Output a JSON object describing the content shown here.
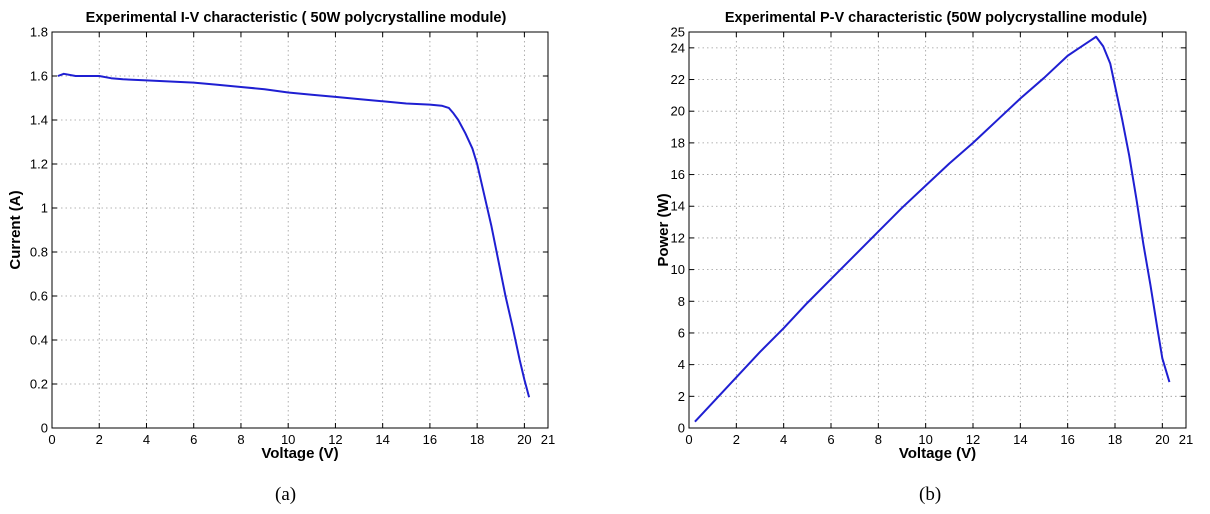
{
  "figure": {
    "captions": [
      "(a)",
      "(b)"
    ]
  },
  "chart_data": [
    {
      "type": "line",
      "title": "Experimental I-V characteristic ( 50W polycrystalline module)",
      "xlabel": "Voltage (V)",
      "ylabel": "Current (A)",
      "xlim": [
        0,
        21
      ],
      "ylim": [
        0,
        1.8
      ],
      "xticks": [
        0,
        2,
        4,
        6,
        8,
        10,
        12,
        14,
        16,
        18,
        20,
        21
      ],
      "yticks": [
        0,
        0.2,
        0.4,
        0.6,
        0.8,
        1,
        1.2,
        1.4,
        1.6,
        1.8
      ],
      "xtick_labels": [
        "0",
        "2",
        "4",
        "6",
        "8",
        "10",
        "12",
        "14",
        "16",
        "18",
        "20",
        "21"
      ],
      "ytick_labels": [
        "0",
        "0.2",
        "0.4",
        "0.6",
        "0.8",
        "1",
        "1.2",
        "1.4",
        "1.6",
        "1.8"
      ],
      "grid": true,
      "color": "#1f1fd2",
      "series": [
        {
          "x": [
            0.25,
            0.5,
            1.0,
            1.5,
            2.0,
            2.5,
            3.0,
            4.0,
            5.0,
            6.0,
            7.0,
            8.0,
            9.0,
            10.0,
            11.0,
            12.0,
            13.0,
            14.0,
            15.0,
            16.0,
            16.5,
            16.8,
            17.0,
            17.2,
            17.5,
            17.8,
            18.0,
            18.3,
            18.6,
            18.9,
            19.2,
            19.5,
            19.8,
            20.0,
            20.2
          ],
          "y": [
            1.6,
            1.61,
            1.6,
            1.6,
            1.6,
            1.59,
            1.585,
            1.58,
            1.575,
            1.57,
            1.56,
            1.55,
            1.54,
            1.525,
            1.515,
            1.505,
            1.495,
            1.485,
            1.475,
            1.47,
            1.465,
            1.455,
            1.43,
            1.4,
            1.34,
            1.27,
            1.2,
            1.06,
            0.92,
            0.76,
            0.6,
            0.46,
            0.31,
            0.22,
            0.14
          ]
        }
      ]
    },
    {
      "type": "line",
      "title": "Experimental P-V characteristic (50W polycrystalline module)",
      "xlabel": "Voltage (V)",
      "ylabel": "Power (W)",
      "xlim": [
        0,
        21
      ],
      "ylim": [
        0,
        25
      ],
      "xticks": [
        0,
        2,
        4,
        6,
        8,
        10,
        12,
        14,
        16,
        18,
        20,
        21
      ],
      "yticks": [
        0,
        2,
        4,
        6,
        8,
        10,
        12,
        14,
        16,
        18,
        20,
        22,
        24,
        25
      ],
      "xtick_labels": [
        "0",
        "2",
        "4",
        "6",
        "8",
        "10",
        "12",
        "14",
        "16",
        "18",
        "20",
        "21"
      ],
      "ytick_labels": [
        "0",
        "2",
        "4",
        "6",
        "8",
        "10",
        "12",
        "14",
        "16",
        "18",
        "20",
        "22",
        "24",
        "25"
      ],
      "grid": true,
      "color": "#1f1fd2",
      "series": [
        {
          "x": [
            0.25,
            1.0,
            2.0,
            3.0,
            4.0,
            5.0,
            6.0,
            7.0,
            8.0,
            9.0,
            10.0,
            11.0,
            12.0,
            13.0,
            14.0,
            15.0,
            16.0,
            16.5,
            17.0,
            17.2,
            17.5,
            17.8,
            18.0,
            18.3,
            18.6,
            18.9,
            19.2,
            19.5,
            19.8,
            20.0,
            20.3
          ],
          "y": [
            0.4,
            1.6,
            3.2,
            4.8,
            6.3,
            7.9,
            9.4,
            10.9,
            12.4,
            13.9,
            15.3,
            16.7,
            18.0,
            19.4,
            20.8,
            22.1,
            23.5,
            24.0,
            24.5,
            24.7,
            24.1,
            23.0,
            21.6,
            19.5,
            17.2,
            14.5,
            11.6,
            9.0,
            6.2,
            4.4,
            2.9
          ]
        }
      ]
    }
  ]
}
